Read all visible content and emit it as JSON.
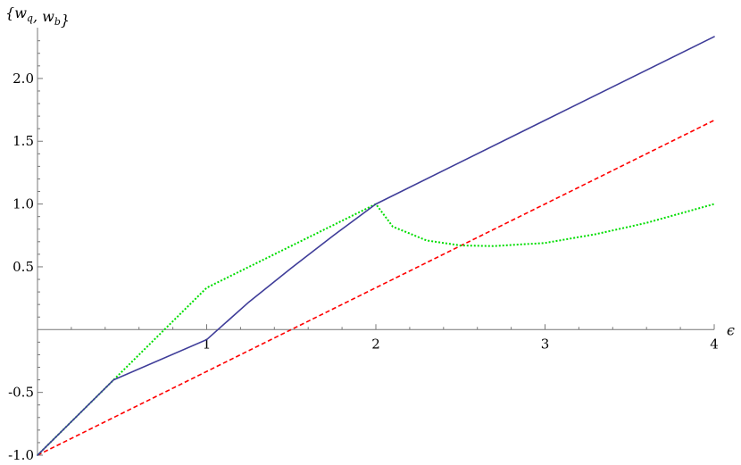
{
  "chart_data": {
    "type": "line",
    "title": "",
    "xlabel": "ϵ",
    "ylabel": "{w_q, w_b}",
    "xlim": [
      0,
      4
    ],
    "ylim": [
      -1.0,
      2.3333
    ],
    "grid": false,
    "legend": "none",
    "x_ticks": [
      {
        "value": 1,
        "label": "1"
      },
      {
        "value": 2,
        "label": "2"
      },
      {
        "value": 3,
        "label": "3"
      },
      {
        "value": 4,
        "label": "4"
      }
    ],
    "y_ticks": [
      {
        "value": -1.0,
        "label": "-1.0"
      },
      {
        "value": -0.5,
        "label": "-0.5"
      },
      {
        "value": 0.5,
        "label": "0.5"
      },
      {
        "value": 1.0,
        "label": "1.0"
      },
      {
        "value": 1.5,
        "label": "1.5"
      },
      {
        "value": 2.0,
        "label": "2.0"
      }
    ],
    "series": [
      {
        "style": "solid",
        "color": "#3f3d99",
        "x": [
          0,
          0.45,
          1.0,
          1.25,
          1.5,
          1.75,
          2.0,
          3.0,
          4.0
        ],
        "y": [
          -1.0,
          -0.4,
          -0.08,
          0.22,
          0.49,
          0.75,
          1.0,
          1.667,
          2.333
        ]
      },
      {
        "style": "dashed",
        "color": "#ff0000",
        "x": [
          0,
          4
        ],
        "y": [
          -1.0,
          1.667
        ]
      },
      {
        "style": "dotted",
        "color": "#00dd00",
        "x": [
          0,
          0.45,
          1.0,
          2.0,
          2.1,
          2.3,
          2.5,
          2.7,
          3.0,
          3.3,
          3.6,
          4.0
        ],
        "y": [
          -1.0,
          -0.4,
          0.333,
          1.0,
          0.82,
          0.71,
          0.67,
          0.665,
          0.69,
          0.76,
          0.85,
          1.0
        ]
      }
    ]
  }
}
